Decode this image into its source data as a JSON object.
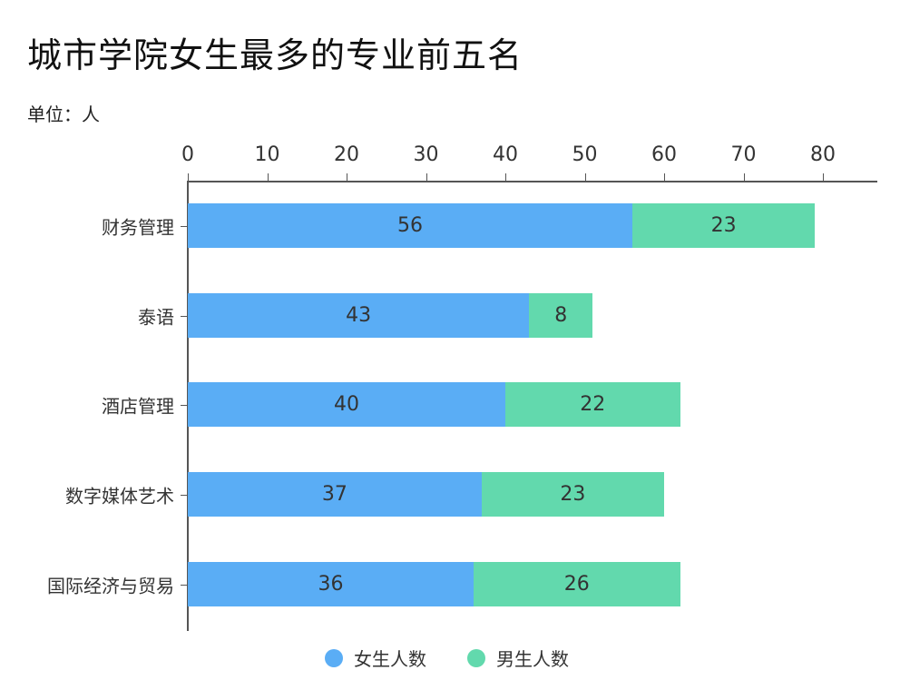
{
  "title": "城市学院女生最多的专业前五名",
  "unit": "单位：人",
  "colors": {
    "female": "#5AADF5",
    "male": "#62D9AD"
  },
  "legend": [
    {
      "label": "女生人数",
      "color": "#5AADF5"
    },
    {
      "label": "男生人数",
      "color": "#62D9AD"
    }
  ],
  "x_ticks": [
    "0",
    "10",
    "20",
    "30",
    "40",
    "50",
    "60",
    "70",
    "80"
  ],
  "chart_data": {
    "type": "bar",
    "orientation": "horizontal",
    "stacked": true,
    "title": "城市学院女生最多的专业前五名",
    "subtitle": "单位：人",
    "categories": [
      "财务管理",
      "泰语",
      "酒店管理",
      "数字媒体艺术",
      "国际经济与贸易"
    ],
    "series": [
      {
        "name": "女生人数",
        "color": "#5AADF5",
        "values": [
          56,
          43,
          40,
          37,
          36
        ]
      },
      {
        "name": "男生人数",
        "color": "#62D9AD",
        "values": [
          23,
          8,
          22,
          23,
          26
        ]
      }
    ],
    "xlabel": "",
    "ylabel": "",
    "xlim": [
      0,
      80
    ],
    "x_ticks": [
      0,
      10,
      20,
      30,
      40,
      50,
      60,
      70,
      80
    ],
    "x_axis_position": "top",
    "grid": false,
    "legend_position": "bottom",
    "data_labels": true
  }
}
